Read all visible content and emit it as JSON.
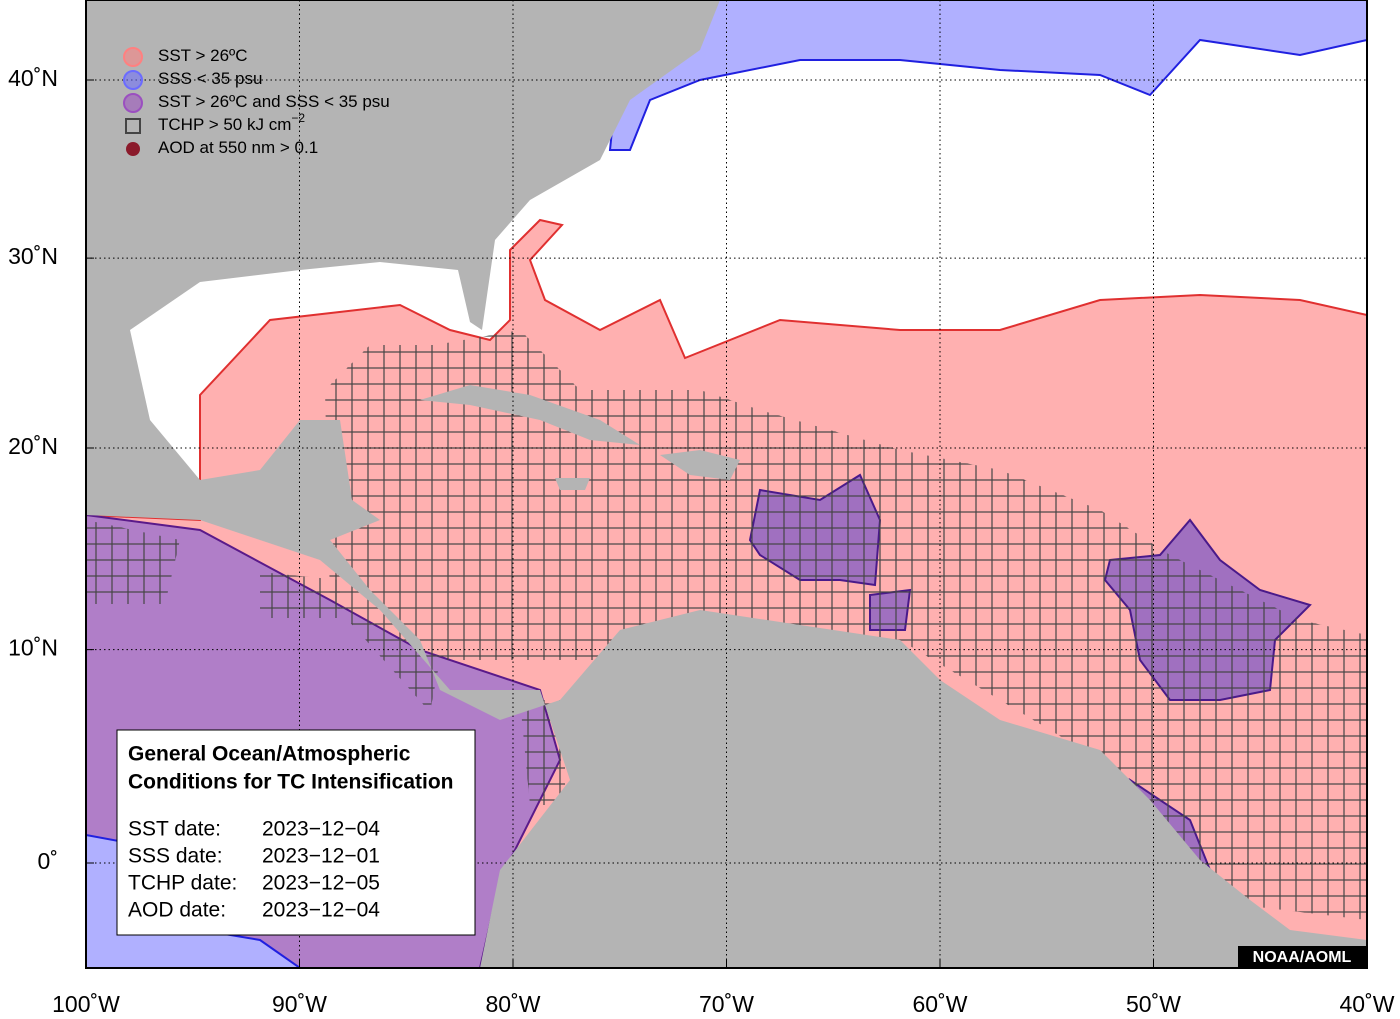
{
  "legend": [
    {
      "label": "SST > 26ºC",
      "color": "#ff8080"
    },
    {
      "label": "SSS < 35 psu",
      "color": "#6b6bff"
    },
    {
      "label": "SST > 26ºC and SSS < 35 psu",
      "color": "#9b4fc0"
    },
    {
      "label": "TCHP > 50 kJ cm",
      "superscript": "−2",
      "color": "#444444"
    },
    {
      "label": "AOD at 550 nm > 0.1",
      "color": "#8b1a2b"
    }
  ],
  "info_box": {
    "title_lines": [
      "General Ocean/Atmospheric",
      "Conditions for TC Intensification"
    ],
    "dates": [
      {
        "label": "SST date:",
        "value": "2023−12−04"
      },
      {
        "label": "SSS date:",
        "value": "2023−12−01"
      },
      {
        "label": "TCHP date:",
        "value": "2023−12−05"
      },
      {
        "label": "AOD date:",
        "value": "2023−12−04"
      }
    ]
  },
  "credit": "NOAA/AOML",
  "axes": {
    "lon_ticks": [
      {
        "value": -100,
        "label": "100˚W"
      },
      {
        "value": -90,
        "label": "90˚W"
      },
      {
        "value": -80,
        "label": "80˚W"
      },
      {
        "value": -70,
        "label": "70˚W"
      },
      {
        "value": -60,
        "label": "60˚W"
      },
      {
        "value": -50,
        "label": "50˚W"
      },
      {
        "value": -40,
        "label": "40˚W"
      }
    ],
    "lat_ticks": [
      {
        "value": 0,
        "label": "0˚"
      },
      {
        "value": 10,
        "label": "10˚N"
      },
      {
        "value": 20,
        "label": "20˚N"
      },
      {
        "value": 30,
        "label": "30˚N"
      },
      {
        "value": 40,
        "label": "40˚N"
      }
    ]
  }
}
